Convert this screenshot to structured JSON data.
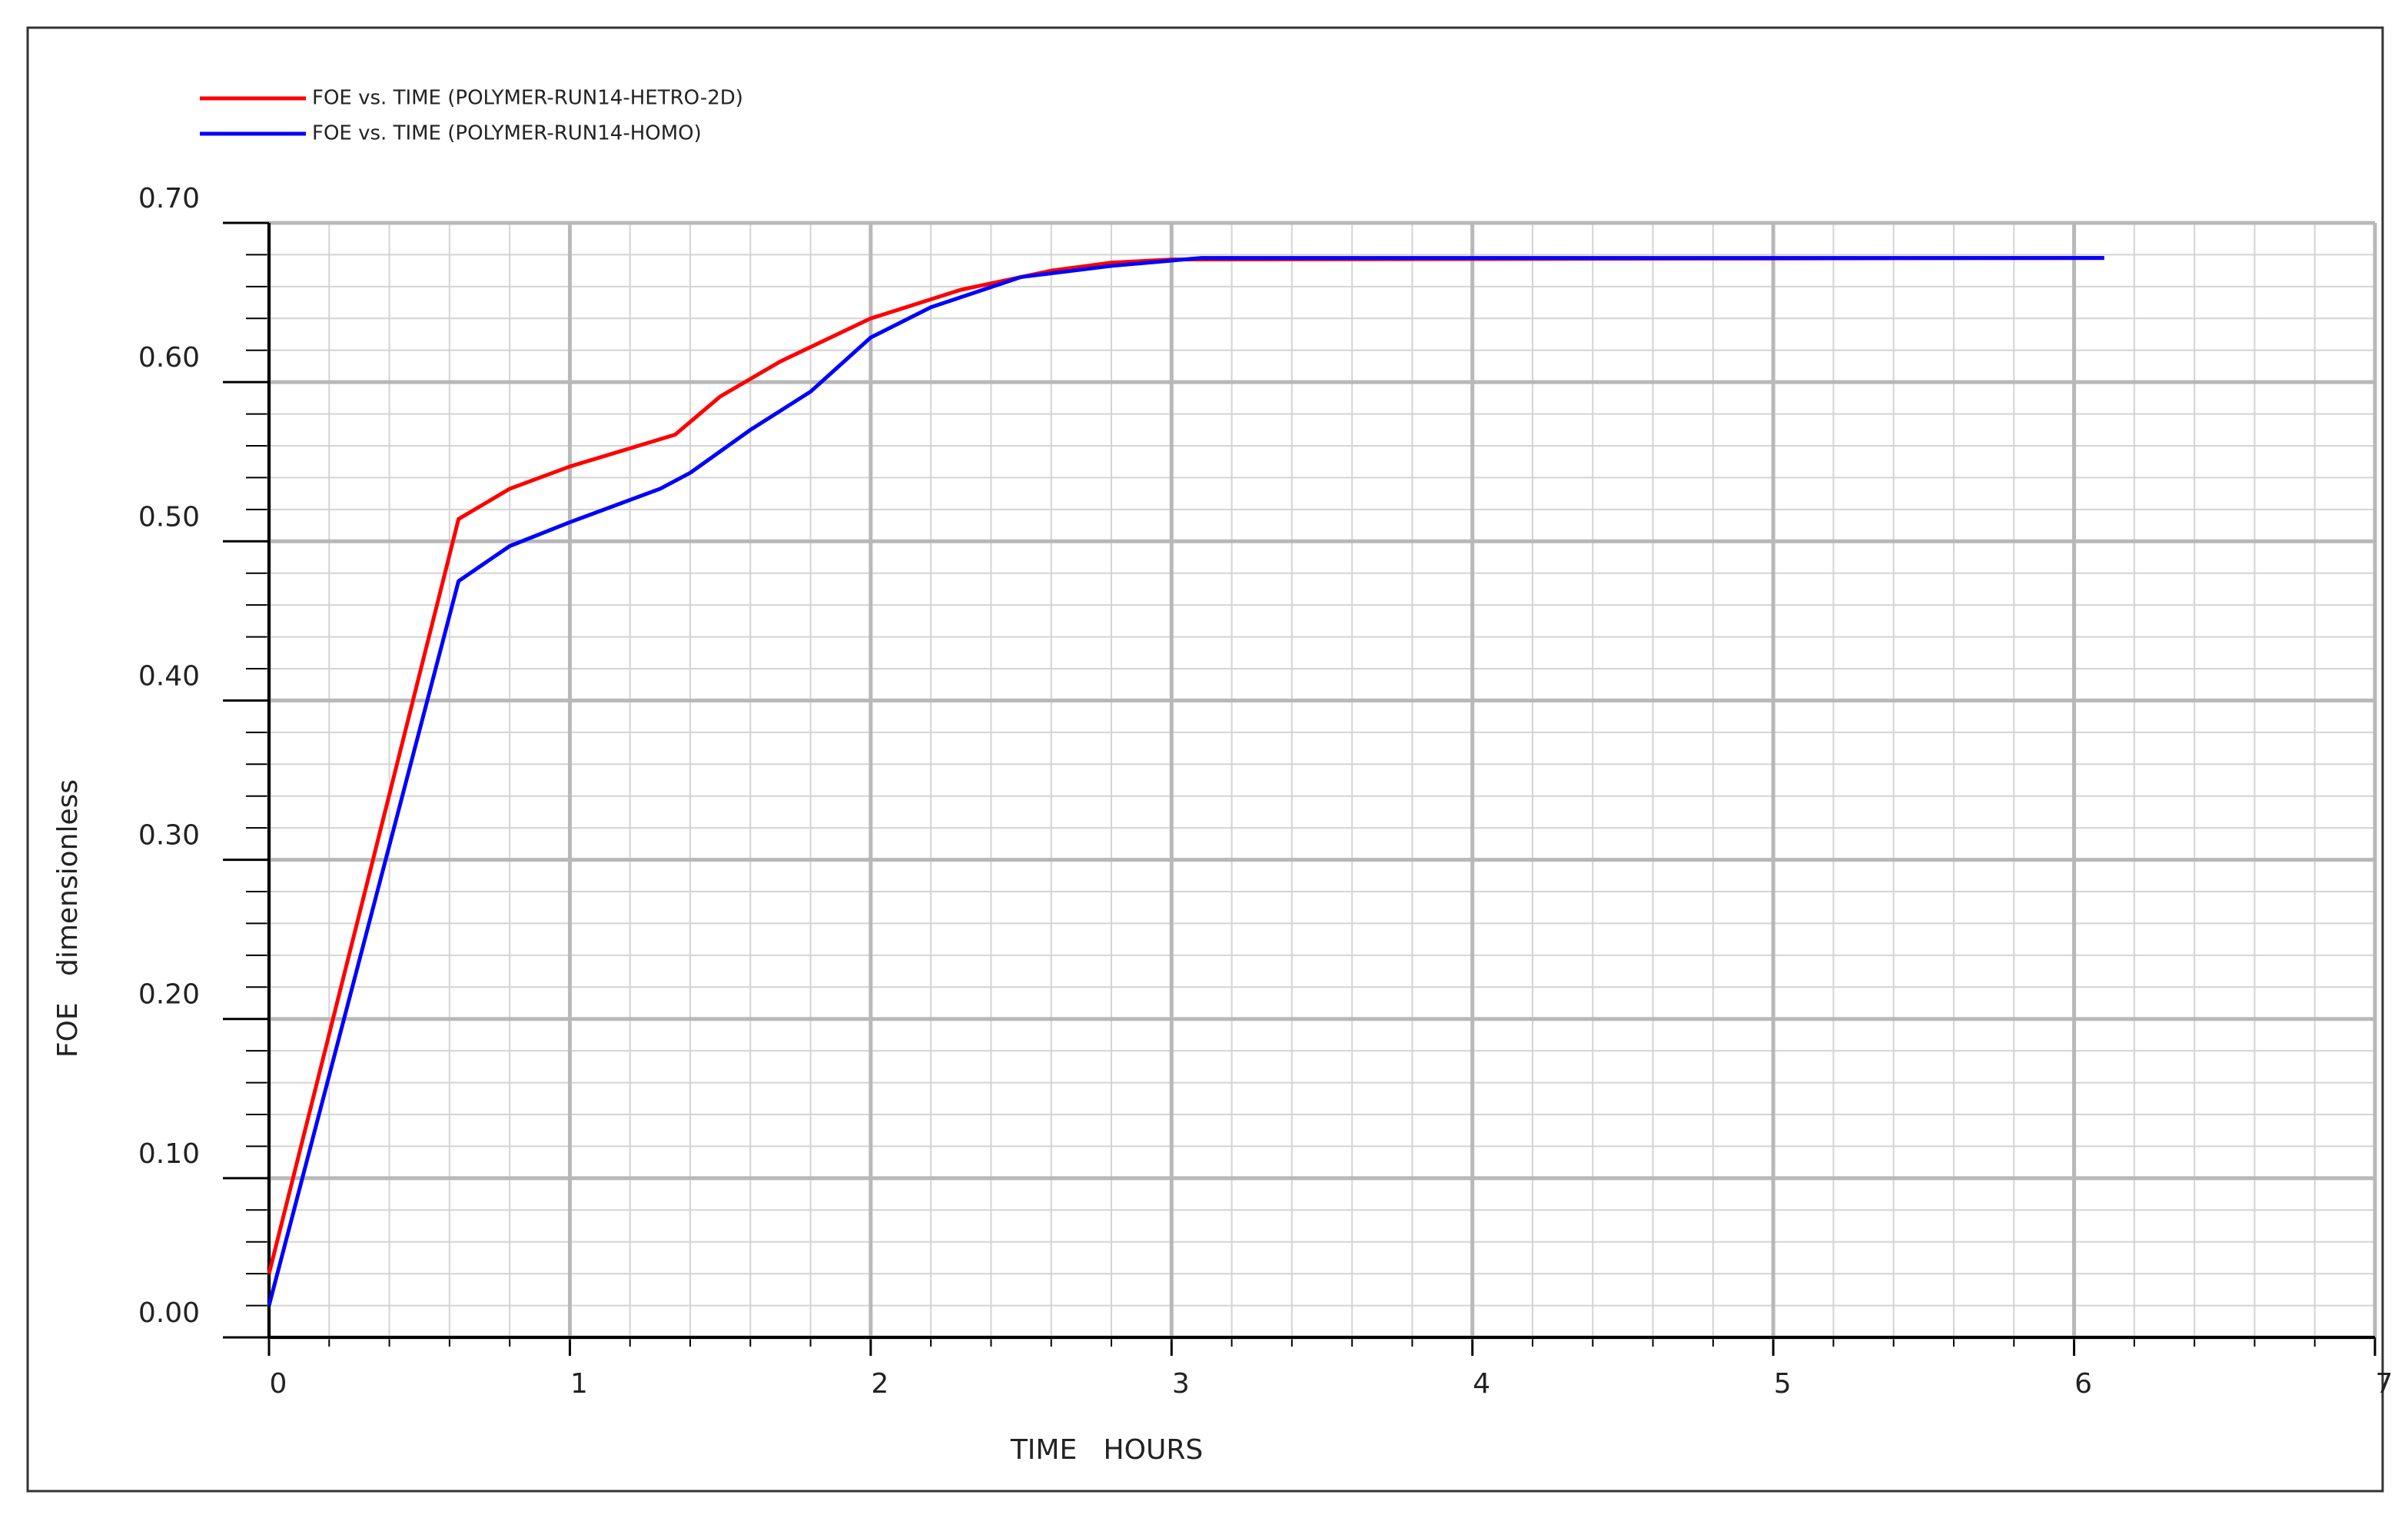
{
  "chart_data": {
    "type": "line",
    "x_label": "TIME   HOURS",
    "y_label": "FOE   dimensionless",
    "xlim": [
      0,
      7
    ],
    "xticks": [
      0,
      1,
      2,
      3,
      4,
      5,
      6,
      7
    ],
    "ylim": [
      0,
      0.7
    ],
    "yticks": [
      {
        "value": 0,
        "label": "0.00"
      },
      {
        "value": 0.1,
        "label": "0.10"
      },
      {
        "value": 0.2,
        "label": "0.20"
      },
      {
        "value": 0.3,
        "label": "0.30"
      },
      {
        "value": 0.4,
        "label": "0.40"
      },
      {
        "value": 0.5,
        "label": "0.50"
      },
      {
        "value": 0.6,
        "label": "0.60"
      },
      {
        "value": 0.7,
        "label": "0.70"
      }
    ],
    "grid": true,
    "minor_divisions": 5,
    "legend": "top-left",
    "series": [
      {
        "name": "FOE vs. TIME (POLYMER-RUN14-HETRO-2D)",
        "color": "#ff0000",
        "x": [
          0,
          0.63,
          0.8,
          1.0,
          1.35,
          1.5,
          1.7,
          2.0,
          2.3,
          2.6,
          2.8,
          3.0,
          6.1
        ],
        "values": [
          0.04,
          0.514,
          0.533,
          0.547,
          0.567,
          0.591,
          0.613,
          0.64,
          0.658,
          0.67,
          0.675,
          0.677,
          0.678
        ]
      },
      {
        "name": "FOE vs. TIME (POLYMER-RUN14-HOMO)",
        "color": "#0000ff",
        "x": [
          0,
          0.63,
          0.8,
          1.0,
          1.3,
          1.4,
          1.6,
          1.8,
          2.0,
          2.2,
          2.5,
          2.8,
          3.1,
          6.1
        ],
        "values": [
          0.02,
          0.475,
          0.497,
          0.512,
          0.533,
          0.543,
          0.57,
          0.594,
          0.628,
          0.647,
          0.666,
          0.673,
          0.678,
          0.678
        ]
      }
    ]
  }
}
